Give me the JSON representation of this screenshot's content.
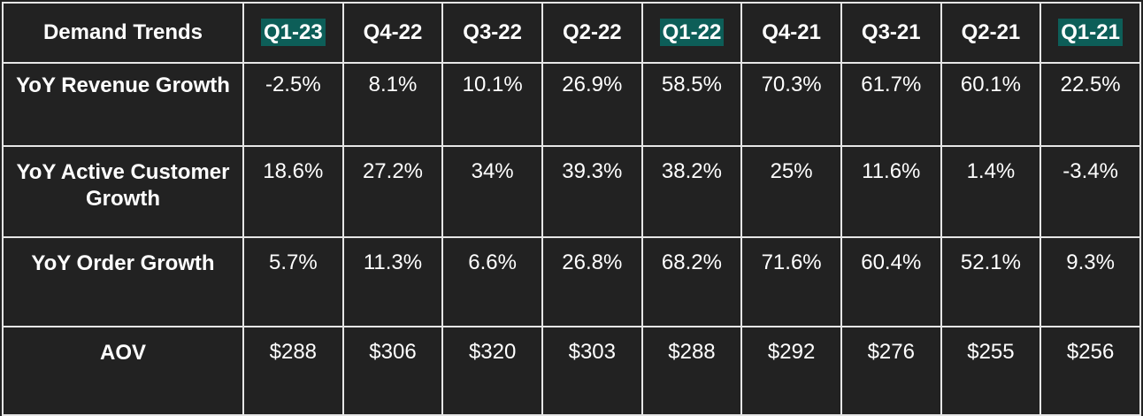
{
  "table": {
    "header": [
      "Demand Trends",
      "Q1-23",
      "Q4-22",
      "Q3-22",
      "Q2-22",
      "Q1-22",
      "Q4-21",
      "Q3-21",
      "Q2-21",
      "Q1-21"
    ],
    "highlighted": [
      false,
      true,
      false,
      false,
      false,
      true,
      false,
      false,
      false,
      true
    ],
    "highlight_color": "#0d5e58",
    "rows": [
      [
        "YoY Revenue Growth",
        "-2.5%",
        "8.1%",
        "10.1%",
        "26.9%",
        "58.5%",
        "70.3%",
        "61.7%",
        "60.1%",
        "22.5%"
      ],
      [
        "YoY Active Customer Growth",
        "18.6%",
        "27.2%",
        "34%",
        "39.3%",
        "38.2%",
        "25%",
        "11.6%",
        "1.4%",
        "-3.4%"
      ],
      [
        "YoY Order Growth",
        "5.7%",
        "11.3%",
        "6.6%",
        "26.8%",
        "68.2%",
        "71.6%",
        "60.4%",
        "52.1%",
        "9.3%"
      ],
      [
        "AOV",
        "$288",
        "$306",
        "$320",
        "$303",
        "$288",
        "$292",
        "$276",
        "$255",
        "$256"
      ]
    ]
  }
}
